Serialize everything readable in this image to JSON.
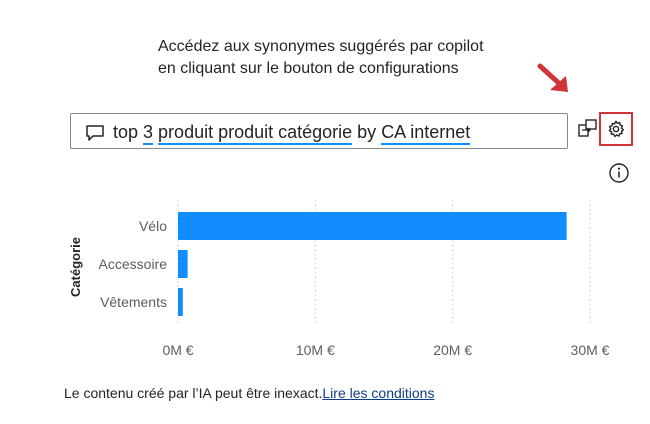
{
  "callout": {
    "line1": "Accédez aux synonymes suggérés par copilot",
    "line2": "en cliquant sur le bouton de configurations"
  },
  "qa": {
    "icon": "chat-bubble-icon",
    "parts": [
      {
        "text": "top",
        "underlined": false
      },
      {
        "text": "3",
        "underlined": true
      },
      {
        "text": "produit produit catégorie",
        "underlined": true
      },
      {
        "text": "by",
        "underlined": false
      },
      {
        "text": "CA internet",
        "underlined": true
      }
    ]
  },
  "toolbar": {
    "share_icon": "copy-to-report-icon",
    "settings_icon": "gear-icon",
    "info_icon": "info-icon",
    "highlight_color": "#d13438"
  },
  "chart_data": {
    "type": "bar",
    "orientation": "horizontal",
    "ylabel": "Catégorie",
    "categories": [
      "Vélo",
      "Accessoire",
      "Vêtements"
    ],
    "values": [
      28.3,
      0.7,
      0.35
    ],
    "xlim": [
      0,
      30
    ],
    "xticks": [
      0,
      10,
      20,
      30
    ],
    "xtick_labels": [
      "0M €",
      "10M €",
      "20M €",
      "30M €"
    ],
    "bar_color": "#118dff",
    "grid": "vertical-dotted"
  },
  "footer": {
    "text": "Le contenu créé par l’IA peut être inexact.",
    "link": "Lire les conditions"
  }
}
